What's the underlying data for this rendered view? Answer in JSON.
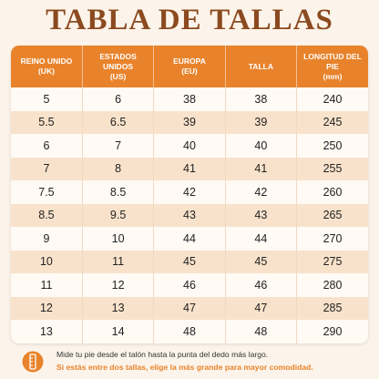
{
  "header": {
    "title": "TABLA DE TALLAS"
  },
  "table": {
    "columns": [
      {
        "label": "REINO UNIDO",
        "unit": "(UK)"
      },
      {
        "label": "ESTADOS UNIDOS",
        "unit": "(US)"
      },
      {
        "label": "EUROPA",
        "unit": "(EU)"
      },
      {
        "label": "TALLA"
      },
      {
        "label": "LONGITUD DEL PIE",
        "unit": "(mm)"
      }
    ],
    "rows": [
      [
        5,
        6,
        38,
        38,
        240
      ],
      [
        5.5,
        6.5,
        39,
        39,
        245
      ],
      [
        6,
        7,
        40,
        40,
        250
      ],
      [
        7,
        8,
        41,
        41,
        255
      ],
      [
        7.5,
        8.5,
        42,
        42,
        260
      ],
      [
        8.5,
        9.5,
        43,
        43,
        265
      ],
      [
        9,
        10,
        44,
        44,
        270
      ],
      [
        10,
        11,
        45,
        45,
        275
      ],
      [
        11,
        12,
        46,
        46,
        280
      ],
      [
        12,
        13,
        47,
        47,
        285
      ],
      [
        13,
        14,
        48,
        48,
        290
      ]
    ]
  },
  "footer": {
    "line1": "Mide tu pie desde el talón hasta la punta del dedo más largo.",
    "line2": "Si estás entre dos tallas, elige la más grande para mayor comodidad."
  }
}
